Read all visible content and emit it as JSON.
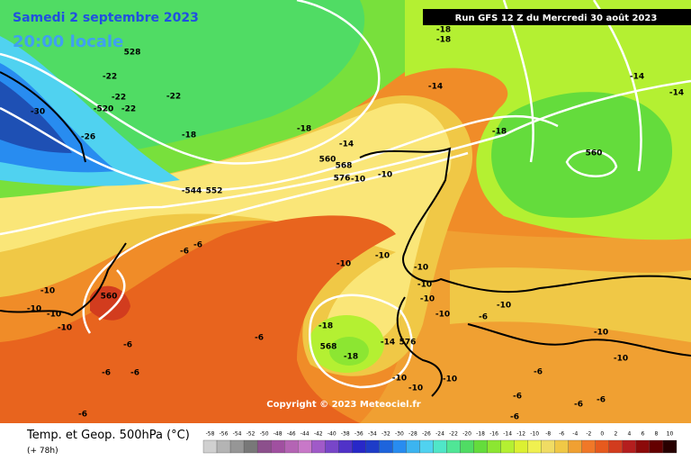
{
  "header": {
    "date": "Samedi 2 septembre 2023",
    "time": "20:00 locale",
    "run": "Run GFS 12 Z du Mercredi 30 août 2023"
  },
  "map": {
    "labels": [
      "528",
      "-22",
      "-22",
      "-22",
      "-22",
      "-520",
      "-30",
      "-26",
      "-18",
      "-18",
      "-18",
      "-18",
      "-14",
      "-14",
      "-14",
      "-18",
      "-14",
      "560",
      "568",
      "576",
      "-10",
      "-10",
      "-544",
      "552",
      "560",
      "-6",
      "-6",
      "-10",
      "-10",
      "-10",
      "560",
      "-10",
      "-10",
      "-10",
      "-10",
      "-6",
      "-6",
      "-6",
      "-6",
      "-18",
      "568",
      "-18",
      "-14",
      "576",
      "-10",
      "-10",
      "-10",
      "-6",
      "-6",
      "-6",
      "-6",
      "-6",
      "-6",
      "-6",
      "-10",
      "-10",
      "-10",
      "-10",
      "-10",
      "-10"
    ]
  },
  "copyright": "Copyright © 2023 Meteociel.fr",
  "footer": {
    "title": "Temp. et Geop. 500hPa (°C)",
    "lead": "(+ 78h)"
  },
  "scale": {
    "values": [
      -58,
      -56,
      -54,
      -52,
      -50,
      -48,
      -46,
      -44,
      -42,
      -40,
      -38,
      -36,
      -34,
      -32,
      -30,
      -28,
      -26,
      -24,
      -22,
      -20,
      -18,
      -16,
      -14,
      -12,
      -10,
      -8,
      -6,
      -4,
      -2,
      0,
      2,
      4,
      6,
      8,
      10
    ],
    "colors": [
      "#d0d0d0",
      "#b4b4b4",
      "#969696",
      "#787878",
      "#8c508c",
      "#a050a0",
      "#b464b4",
      "#c878c8",
      "#a05ac8",
      "#7846c8",
      "#5032c8",
      "#2828c8",
      "#1e3cc8",
      "#1e64dc",
      "#288cf0",
      "#3cb4f0",
      "#50d2f0",
      "#50e6c8",
      "#50e696",
      "#50dc64",
      "#64dc3c",
      "#8ce632",
      "#b4f032",
      "#dcf032",
      "#f0f050",
      "#f0dc64",
      "#f0c846",
      "#f0a032",
      "#f07828",
      "#e65a1e",
      "#d23c1e",
      "#b41e1e",
      "#8c0a0a",
      "#640000",
      "#280000"
    ]
  }
}
